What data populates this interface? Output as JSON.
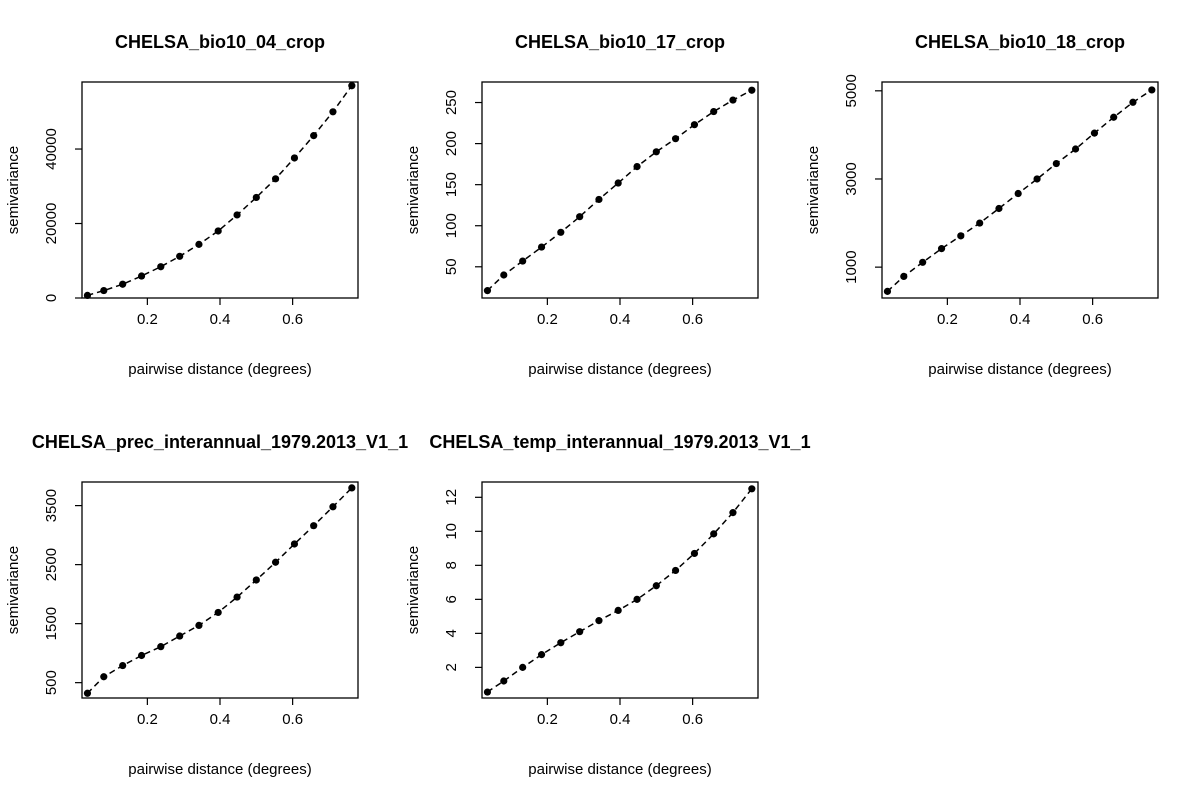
{
  "chart_data": [
    {
      "type": "scatter",
      "title": "CHELSA_bio10_04_crop",
      "xlabel": "pairwise distance (degrees)",
      "ylabel": "semivariance",
      "xlim": [
        0.02,
        0.78
      ],
      "ylim": [
        0,
        58000
      ],
      "x_ticks": [
        0.2,
        0.4,
        0.6
      ],
      "y_ticks": [
        0,
        20000,
        40000
      ],
      "line_style": "dashed",
      "grid": false,
      "x": [
        0.035,
        0.08,
        0.132,
        0.184,
        0.237,
        0.289,
        0.342,
        0.395,
        0.447,
        0.5,
        0.553,
        0.605,
        0.658,
        0.711,
        0.763
      ],
      "y": [
        700,
        2000,
        3700,
        5900,
        8400,
        11200,
        14400,
        18000,
        22300,
        27000,
        32000,
        37600,
        43600,
        50000,
        57000
      ]
    },
    {
      "type": "scatter",
      "title": "CHELSA_bio10_17_crop",
      "xlabel": "pairwise distance (degrees)",
      "ylabel": "semivariance",
      "xlim": [
        0.02,
        0.78
      ],
      "ylim": [
        12,
        275
      ],
      "x_ticks": [
        0.2,
        0.4,
        0.6
      ],
      "y_ticks": [
        50,
        100,
        150,
        200,
        250
      ],
      "line_style": "dashed",
      "grid": false,
      "x": [
        0.035,
        0.08,
        0.132,
        0.184,
        0.237,
        0.289,
        0.342,
        0.395,
        0.447,
        0.5,
        0.553,
        0.605,
        0.658,
        0.711,
        0.763
      ],
      "y": [
        21,
        40,
        57,
        74,
        92,
        111,
        132,
        152,
        172,
        190,
        206,
        223,
        239,
        253,
        265
      ]
    },
    {
      "type": "scatter",
      "title": "CHELSA_bio10_18_crop",
      "xlabel": "pairwise distance (degrees)",
      "ylabel": "semivariance",
      "xlim": [
        0.02,
        0.78
      ],
      "ylim": [
        300,
        5200
      ],
      "x_ticks": [
        0.2,
        0.4,
        0.6
      ],
      "y_ticks": [
        1000,
        3000,
        5000
      ],
      "line_style": "dashed",
      "grid": false,
      "x": [
        0.035,
        0.08,
        0.132,
        0.184,
        0.237,
        0.289,
        0.342,
        0.395,
        0.447,
        0.5,
        0.553,
        0.605,
        0.658,
        0.711,
        0.763
      ],
      "y": [
        450,
        790,
        1110,
        1420,
        1710,
        2000,
        2330,
        2670,
        3000,
        3350,
        3680,
        4040,
        4400,
        4740,
        5020
      ]
    },
    {
      "type": "scatter",
      "title": "CHELSA_prec_interannual_1979.2013_V1_1",
      "xlabel": "pairwise distance (degrees)",
      "ylabel": "semivariance",
      "xlim": [
        0.02,
        0.78
      ],
      "ylim": [
        240,
        3900
      ],
      "x_ticks": [
        0.2,
        0.4,
        0.6
      ],
      "y_ticks": [
        500,
        1500,
        2500,
        3500
      ],
      "line_style": "dashed",
      "grid": false,
      "x": [
        0.035,
        0.08,
        0.132,
        0.184,
        0.237,
        0.289,
        0.342,
        0.395,
        0.447,
        0.5,
        0.553,
        0.605,
        0.658,
        0.711,
        0.763
      ],
      "y": [
        320,
        600,
        790,
        960,
        1110,
        1290,
        1470,
        1690,
        1950,
        2240,
        2540,
        2850,
        3160,
        3480,
        3800
      ]
    },
    {
      "type": "scatter",
      "title": "CHELSA_temp_interannual_1979.2013_V1_1",
      "xlabel": "pairwise distance (degrees)",
      "ylabel": "semivariance",
      "xlim": [
        0.02,
        0.78
      ],
      "ylim": [
        0.2,
        12.9
      ],
      "x_ticks": [
        0.2,
        0.4,
        0.6
      ],
      "y_ticks": [
        2,
        4,
        6,
        8,
        10,
        12
      ],
      "line_style": "dashed",
      "grid": false,
      "x": [
        0.035,
        0.08,
        0.132,
        0.184,
        0.237,
        0.289,
        0.342,
        0.395,
        0.447,
        0.5,
        0.553,
        0.605,
        0.658,
        0.711,
        0.763
      ],
      "y": [
        0.55,
        1.2,
        2.0,
        2.75,
        3.45,
        4.1,
        4.75,
        5.35,
        6.0,
        6.8,
        7.7,
        8.7,
        9.85,
        11.1,
        12.5
      ]
    }
  ]
}
